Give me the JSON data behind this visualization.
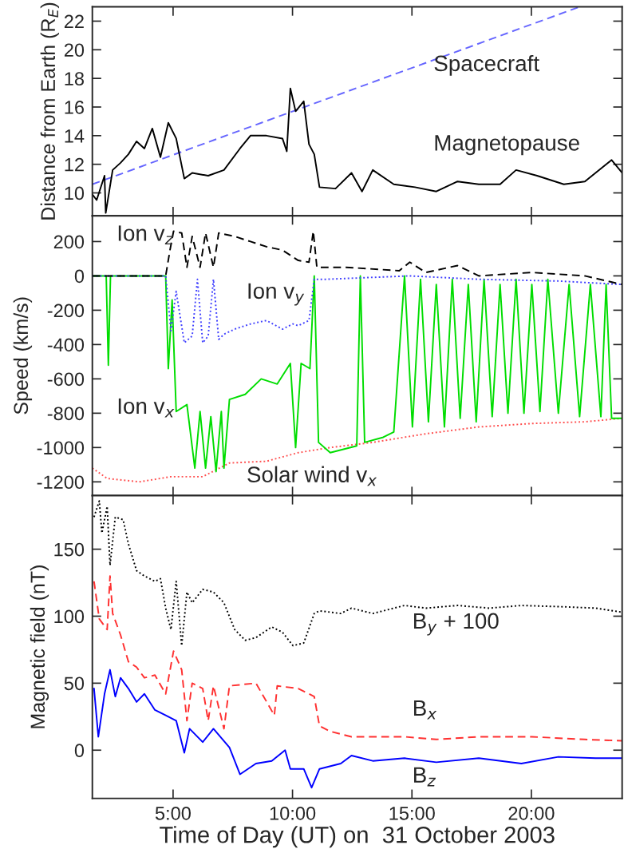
{
  "chart_data": [
    {
      "type": "line",
      "ylabel": "Distance from Earth (R$_{E}$)",
      "xlim": [
        1.62,
        23.8
      ],
      "ylim": [
        8.4,
        23
      ],
      "xticks": [
        {
          "value": 5,
          "label": null
        },
        {
          "value": 10,
          "label": null
        },
        {
          "value": 15,
          "label": null
        },
        {
          "value": 20,
          "label": null
        }
      ],
      "yticks": [
        10,
        12,
        14,
        16,
        18,
        20,
        22
      ],
      "tick_labels": "y",
      "series": [
        {
          "name": "Spacecraft",
          "color": "#6666ff",
          "line_style": "dashed",
          "x": [
            1.62,
            22.02
          ],
          "values": [
            10.6,
            23
          ]
        },
        {
          "name": "Magnetopause",
          "color": "#000000",
          "line_style": "solid",
          "x": [
            1.62,
            1.8,
            2.13,
            2.18,
            2.47,
            2.8,
            3.13,
            3.47,
            3.8,
            4.13,
            4.47,
            4.8,
            5.13,
            5.47,
            5.8,
            6.47,
            7.13,
            7.8,
            8.24,
            8.91,
            9.58,
            9.76,
            9.91,
            10.13,
            10.47,
            10.69,
            10.91,
            11.13,
            11.8,
            12.47,
            12.91,
            13.36,
            14.24,
            15.13,
            16.02,
            16.91,
            17.8,
            18.69,
            19.36,
            20.24,
            21.36,
            22.24,
            23.36,
            23.8
          ],
          "values": [
            9.9,
            9.5,
            11.2,
            8.6,
            11.6,
            12.1,
            12.7,
            13.6,
            13.1,
            14.5,
            12.5,
            14.9,
            13.8,
            11.0,
            11.4,
            11.2,
            11.6,
            13.1,
            14.0,
            14.0,
            13.8,
            12.9,
            17.3,
            15.7,
            16.4,
            13.4,
            12.7,
            10.4,
            10.3,
            11.4,
            10.1,
            11.6,
            10.6,
            10.4,
            10.1,
            10.8,
            10.6,
            10.6,
            11.6,
            11.2,
            10.6,
            10.8,
            12.3,
            11.4
          ]
        }
      ]
    },
    {
      "type": "line",
      "ylabel": "Speed (km/s)",
      "xlim": [
        1.62,
        23.8
      ],
      "ylim": [
        -1280,
        350
      ],
      "xticks": [
        {
          "value": 5,
          "label": null
        },
        {
          "value": 10,
          "label": null
        },
        {
          "value": 15,
          "label": null
        },
        {
          "value": 20,
          "label": null
        }
      ],
      "yticks": [
        -1200,
        -1000,
        -800,
        -600,
        -400,
        -200,
        0,
        200
      ],
      "tick_labels": "y",
      "series": [
        {
          "name": "Solar wind v$_{x}$",
          "color": "#ff5050",
          "line_style": "dotted",
          "x": [
            1.62,
            2.24,
            3.58,
            4.91,
            6.24,
            7.36,
            8.91,
            10.24,
            11.58,
            13.36,
            15.58,
            17.8,
            20.02,
            22.24,
            23.8
          ],
          "values": [
            -1120,
            -1180,
            -1200,
            -1170,
            -1170,
            -1090,
            -1080,
            -1030,
            -1000,
            -970,
            -920,
            -880,
            -860,
            -850,
            -830
          ]
        },
        {
          "name": "Ion v$_{x}$",
          "color": "#00dd00",
          "line_style": "solid",
          "x": [
            1.62,
            2.2,
            2.29,
            2.38,
            4.69,
            4.8,
            4.96,
            5.13,
            5.58,
            5.91,
            6.13,
            6.36,
            6.58,
            6.8,
            7.02,
            7.13,
            7.36,
            8.02,
            8.69,
            9.36,
            9.91,
            10.13,
            10.36,
            10.73,
            10.91,
            11.09,
            11.58,
            12.69,
            12.84,
            13.02,
            13.8,
            14.24,
            14.69,
            15.02,
            15.36,
            15.69,
            16.02,
            16.36,
            16.69,
            17.02,
            17.36,
            17.69,
            18.02,
            18.36,
            18.69,
            19.02,
            19.36,
            19.69,
            20.02,
            20.36,
            20.69,
            21.13,
            21.58,
            22.02,
            22.47,
            22.91,
            23.13,
            23.36,
            23.8
          ],
          "values": [
            0,
            0,
            -520,
            0,
            0,
            -540,
            -140,
            -790,
            -750,
            -1120,
            -790,
            -1120,
            -820,
            -1140,
            -790,
            -1120,
            -720,
            -690,
            -600,
            -630,
            -510,
            -1000,
            -510,
            -540,
            0,
            -970,
            -1030,
            -990,
            0,
            -970,
            -940,
            -910,
            0,
            -880,
            -20,
            -850,
            -50,
            -880,
            -20,
            -830,
            -50,
            -850,
            -20,
            -820,
            -50,
            -800,
            -20,
            -800,
            -50,
            -790,
            -20,
            -800,
            -50,
            -820,
            -50,
            -820,
            -50,
            -830,
            -830
          ]
        },
        {
          "name": "Ion v$_{y}$",
          "color": "#4040ff",
          "line_style": "dotted",
          "x": [
            1.62,
            4.69,
            4.91,
            5.13,
            5.47,
            5.8,
            6.02,
            6.24,
            6.47,
            6.69,
            6.91,
            7.13,
            7.58,
            8.24,
            8.91,
            9.58,
            10.02,
            10.24,
            10.69,
            10.91,
            11.36,
            14.91,
            17.8,
            21.13,
            23.8
          ],
          "values": [
            0,
            0,
            -320,
            -90,
            -390,
            -350,
            -20,
            -390,
            -350,
            -20,
            -370,
            -340,
            -310,
            -280,
            -260,
            -310,
            -280,
            -290,
            -260,
            -20,
            -20,
            0,
            -20,
            -30,
            -50
          ]
        },
        {
          "name": "Ion v$_{z}$",
          "color": "#000000",
          "line_style": "dashed",
          "x": [
            1.62,
            4.69,
            4.87,
            5.02,
            5.36,
            5.58,
            5.8,
            6.13,
            6.36,
            6.69,
            6.91,
            7.58,
            8.24,
            8.91,
            9.58,
            10.24,
            10.69,
            10.87,
            11.02,
            12.24,
            14.47,
            14.91,
            15.58,
            16.91,
            17.8,
            20.02,
            22.24,
            23.8
          ],
          "values": [
            0,
            0,
            150,
            260,
            250,
            50,
            230,
            50,
            250,
            50,
            250,
            230,
            200,
            170,
            150,
            90,
            80,
            260,
            50,
            50,
            30,
            80,
            20,
            60,
            0,
            20,
            0,
            -50
          ]
        }
      ]
    },
    {
      "type": "line",
      "ylabel": "Magnetic field (nT)",
      "xlabel": "Time of Day (UT) on  31 October 2003",
      "xlim": [
        1.62,
        23.8
      ],
      "ylim": [
        -36,
        190
      ],
      "xticks": [
        {
          "value": 5,
          "label": "5:00"
        },
        {
          "value": 10,
          "label": "10:00"
        },
        {
          "value": 15,
          "label": "15:00"
        },
        {
          "value": 20,
          "label": "20:00"
        }
      ],
      "yticks": [
        0,
        50,
        100,
        150
      ],
      "series": [
        {
          "name": "B$_{y}$ + 100",
          "color": "#000000",
          "line_style": "dotted",
          "x": [
            1.69,
            1.91,
            2.02,
            2.24,
            2.36,
            2.58,
            2.91,
            3.13,
            3.47,
            3.8,
            4.24,
            4.47,
            4.69,
            4.91,
            5.13,
            5.36,
            5.58,
            5.8,
            6.24,
            6.69,
            7.13,
            7.58,
            8.02,
            8.47,
            9.13,
            9.58,
            10.02,
            10.47,
            10.91,
            11.13,
            12.02,
            12.47,
            13.36,
            14.69,
            15.58,
            16.91,
            18.24,
            19.58,
            21.36,
            22.69,
            23.8
          ],
          "values": [
            174,
            186,
            162,
            182,
            138,
            174,
            172,
            154,
            134,
            130,
            126,
            128,
            106,
            90,
            126,
            78,
            118,
            110,
            120,
            118,
            110,
            90,
            82,
            84,
            92,
            88,
            78,
            80,
            102,
            104,
            102,
            106,
            102,
            108,
            106,
            108,
            106,
            108,
            107,
            106,
            103
          ]
        },
        {
          "name": "B$_{x}$",
          "color": "#ff3030",
          "line_style": "dashed",
          "x": [
            1.69,
            1.91,
            2.24,
            2.36,
            2.47,
            2.8,
            3.13,
            3.47,
            3.8,
            4.24,
            4.69,
            5.02,
            5.36,
            5.58,
            5.8,
            6.24,
            6.47,
            6.69,
            7.13,
            7.36,
            8.47,
            9.24,
            9.36,
            10.24,
            10.91,
            11.13,
            11.58,
            12.47,
            14.69,
            16.02,
            17.8,
            20.02,
            22.24,
            23.8
          ],
          "values": [
            126,
            98,
            90,
            130,
            102,
            86,
            66,
            62,
            54,
            56,
            42,
            74,
            60,
            22,
            50,
            46,
            22,
            48,
            16,
            48,
            50,
            26,
            48,
            46,
            40,
            18,
            14,
            10,
            10,
            8,
            10,
            10,
            8,
            7
          ]
        },
        {
          "name": "B$_{z}$",
          "color": "#0000ff",
          "line_style": "solid",
          "x": [
            1.69,
            1.87,
            2.13,
            2.36,
            2.58,
            2.8,
            3.13,
            3.47,
            3.8,
            4.24,
            4.69,
            5.13,
            5.47,
            5.69,
            6.24,
            6.69,
            7.36,
            7.8,
            8.47,
            9.13,
            9.69,
            9.91,
            10.47,
            10.8,
            11.13,
            12.02,
            12.47,
            13.36,
            14.69,
            16.02,
            17.8,
            19.58,
            21.13,
            22.69,
            23.8
          ],
          "values": [
            46,
            10,
            42,
            60,
            40,
            54,
            46,
            36,
            42,
            30,
            26,
            22,
            -2,
            16,
            6,
            16,
            2,
            -18,
            -10,
            -8,
            0,
            -14,
            -14,
            -28,
            -14,
            -10,
            -4,
            -8,
            -6,
            -9,
            -6,
            -10,
            -5,
            -6,
            -6
          ]
        }
      ]
    }
  ]
}
